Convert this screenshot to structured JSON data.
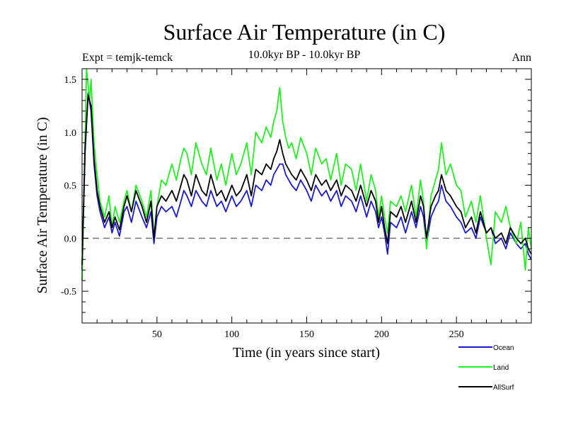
{
  "chart_data": {
    "type": "line",
    "title": "Surface Air Temperature (in C)",
    "subtitle": "10.0kyr BP - 10.0kyr BP",
    "left_label": "Expt = temjk-temck",
    "right_label": "Ann",
    "xlabel": "Time (in years since start)",
    "ylabel": "Surface Air Temperature (in C)",
    "xlim": [
      0,
      300
    ],
    "ylim": [
      -0.8,
      1.6
    ],
    "xticks": [
      50,
      100,
      150,
      200,
      250
    ],
    "xtick_labels": [
      "50",
      "100",
      "150",
      "200",
      "250"
    ],
    "yticks": [
      -0.5,
      0.0,
      0.5,
      1.0,
      1.5
    ],
    "ytick_labels": [
      "-0.5",
      "0.0",
      "0.5",
      "1.0",
      "1.5"
    ],
    "reference_line": 0.0,
    "legend_position": "bottom-right, below plot",
    "series": [
      {
        "name": "Ocean",
        "color": "#1a1acc",
        "x": [
          0,
          2,
          4,
          6,
          8,
          10,
          12,
          15,
          18,
          20,
          22,
          25,
          28,
          30,
          33,
          36,
          40,
          43,
          46,
          48,
          50,
          53,
          56,
          60,
          63,
          66,
          68,
          70,
          73,
          76,
          80,
          83,
          86,
          90,
          93,
          96,
          100,
          103,
          106,
          110,
          113,
          116,
          120,
          123,
          126,
          128,
          130,
          132,
          134,
          136,
          138,
          140,
          143,
          146,
          150,
          153,
          156,
          160,
          163,
          166,
          170,
          173,
          176,
          180,
          183,
          186,
          190,
          193,
          196,
          198,
          200,
          202,
          204,
          206,
          210,
          213,
          216,
          220,
          223,
          226,
          228,
          230,
          233,
          236,
          238,
          240,
          243,
          246,
          250,
          253,
          256,
          260,
          263,
          266,
          270,
          273,
          276,
          280,
          283,
          286,
          290,
          293,
          296,
          298,
          300
        ],
        "values": [
          -0.3,
          0.8,
          1.37,
          1.2,
          0.7,
          0.4,
          0.25,
          0.1,
          0.2,
          0.05,
          0.15,
          0.02,
          0.25,
          0.3,
          0.15,
          0.35,
          0.2,
          0.1,
          0.25,
          -0.05,
          0.2,
          0.3,
          0.25,
          0.3,
          0.2,
          0.35,
          0.45,
          0.4,
          0.3,
          0.45,
          0.35,
          0.3,
          0.45,
          0.3,
          0.35,
          0.25,
          0.4,
          0.3,
          0.35,
          0.45,
          0.3,
          0.5,
          0.45,
          0.55,
          0.5,
          0.6,
          0.65,
          0.7,
          0.7,
          0.6,
          0.55,
          0.5,
          0.45,
          0.55,
          0.45,
          0.35,
          0.5,
          0.4,
          0.45,
          0.35,
          0.45,
          0.3,
          0.4,
          0.35,
          0.25,
          0.4,
          0.2,
          0.35,
          0.25,
          0.1,
          0.2,
          0.05,
          -0.15,
          0.15,
          0.1,
          0.2,
          0.05,
          0.25,
          0.1,
          0.3,
          0.2,
          -0.05,
          0.2,
          0.3,
          0.35,
          0.5,
          0.35,
          0.3,
          0.2,
          0.15,
          0.05,
          0.1,
          0.0,
          0.2,
          0.05,
          0.1,
          -0.05,
          0.0,
          -0.1,
          0.05,
          -0.05,
          -0.1,
          -0.05,
          -0.15,
          -0.2
        ]
      },
      {
        "name": "Land",
        "color": "#22ee22",
        "x": [
          0,
          2,
          3,
          5,
          6,
          8,
          10,
          12,
          15,
          18,
          20,
          22,
          25,
          28,
          30,
          33,
          36,
          40,
          43,
          46,
          48,
          50,
          53,
          56,
          60,
          63,
          66,
          68,
          70,
          73,
          76,
          80,
          83,
          86,
          90,
          93,
          96,
          100,
          103,
          106,
          110,
          113,
          116,
          120,
          123,
          126,
          128,
          130,
          132,
          134,
          136,
          138,
          140,
          143,
          146,
          150,
          153,
          156,
          160,
          163,
          166,
          170,
          173,
          176,
          180,
          183,
          186,
          190,
          193,
          196,
          198,
          200,
          202,
          204,
          206,
          210,
          213,
          216,
          220,
          223,
          226,
          228,
          230,
          233,
          236,
          238,
          240,
          243,
          246,
          250,
          253,
          256,
          260,
          263,
          266,
          270,
          273,
          276,
          280,
          283,
          286,
          290,
          293,
          296,
          298,
          300
        ],
        "values": [
          -0.4,
          0.9,
          1.6,
          1.3,
          1.5,
          0.9,
          0.6,
          0.35,
          0.2,
          0.4,
          0.1,
          0.3,
          0.15,
          0.35,
          0.45,
          0.25,
          0.5,
          0.35,
          0.2,
          0.45,
          0.0,
          0.3,
          0.55,
          0.5,
          0.7,
          0.55,
          0.75,
          0.85,
          0.8,
          0.6,
          0.9,
          0.7,
          0.6,
          0.85,
          0.55,
          0.7,
          0.5,
          0.8,
          0.6,
          0.7,
          0.9,
          0.6,
          1.0,
          0.9,
          1.05,
          0.95,
          1.1,
          1.2,
          1.42,
          1.1,
          0.95,
          0.85,
          0.9,
          0.75,
          0.95,
          0.8,
          0.6,
          0.85,
          0.7,
          0.75,
          0.55,
          0.8,
          0.5,
          0.7,
          0.65,
          0.45,
          0.7,
          0.35,
          0.6,
          0.45,
          0.2,
          0.4,
          0.2,
          0.05,
          0.35,
          0.3,
          0.4,
          0.25,
          0.5,
          0.2,
          0.55,
          0.35,
          -0.1,
          0.4,
          0.55,
          0.65,
          0.9,
          0.6,
          0.7,
          0.5,
          0.45,
          0.2,
          0.35,
          0.15,
          0.4,
          0.0,
          -0.25,
          0.25,
          0.15,
          0.3,
          0.1,
          -0.05,
          0.15,
          -0.3,
          0.1,
          -0.1
        ]
      },
      {
        "name": "AllSurf",
        "color": "#000000",
        "x": [
          0,
          2,
          4,
          6,
          8,
          10,
          12,
          15,
          18,
          20,
          22,
          25,
          28,
          30,
          33,
          36,
          40,
          43,
          46,
          48,
          50,
          53,
          56,
          60,
          63,
          66,
          68,
          70,
          73,
          76,
          80,
          83,
          86,
          90,
          93,
          96,
          100,
          103,
          106,
          110,
          113,
          116,
          120,
          123,
          126,
          128,
          130,
          132,
          134,
          136,
          138,
          140,
          143,
          146,
          150,
          153,
          156,
          160,
          163,
          166,
          170,
          173,
          176,
          180,
          183,
          186,
          190,
          193,
          196,
          198,
          200,
          202,
          204,
          206,
          210,
          213,
          216,
          220,
          223,
          226,
          228,
          230,
          233,
          236,
          238,
          240,
          243,
          246,
          250,
          253,
          256,
          260,
          263,
          266,
          270,
          273,
          276,
          280,
          283,
          286,
          290,
          293,
          296,
          298,
          300
        ],
        "values": [
          -0.25,
          0.85,
          1.35,
          1.25,
          0.75,
          0.45,
          0.3,
          0.15,
          0.25,
          0.1,
          0.2,
          0.08,
          0.3,
          0.4,
          0.25,
          0.45,
          0.3,
          0.15,
          0.35,
          0.0,
          0.3,
          0.4,
          0.35,
          0.45,
          0.35,
          0.5,
          0.6,
          0.55,
          0.4,
          0.6,
          0.45,
          0.4,
          0.6,
          0.4,
          0.45,
          0.35,
          0.5,
          0.4,
          0.45,
          0.6,
          0.4,
          0.65,
          0.6,
          0.7,
          0.65,
          0.75,
          0.82,
          0.93,
          0.8,
          0.7,
          0.65,
          0.6,
          0.55,
          0.65,
          0.55,
          0.45,
          0.6,
          0.5,
          0.55,
          0.45,
          0.55,
          0.4,
          0.5,
          0.45,
          0.35,
          0.5,
          0.3,
          0.45,
          0.35,
          0.15,
          0.3,
          0.1,
          -0.05,
          0.25,
          0.2,
          0.3,
          0.15,
          0.35,
          0.15,
          0.4,
          0.3,
          0.0,
          0.3,
          0.4,
          0.45,
          0.6,
          0.45,
          0.4,
          0.3,
          0.25,
          0.1,
          0.2,
          0.05,
          0.25,
          0.05,
          0.1,
          0.0,
          0.05,
          -0.05,
          0.1,
          0.0,
          -0.05,
          0.0,
          -0.1,
          -0.15
        ]
      }
    ]
  }
}
